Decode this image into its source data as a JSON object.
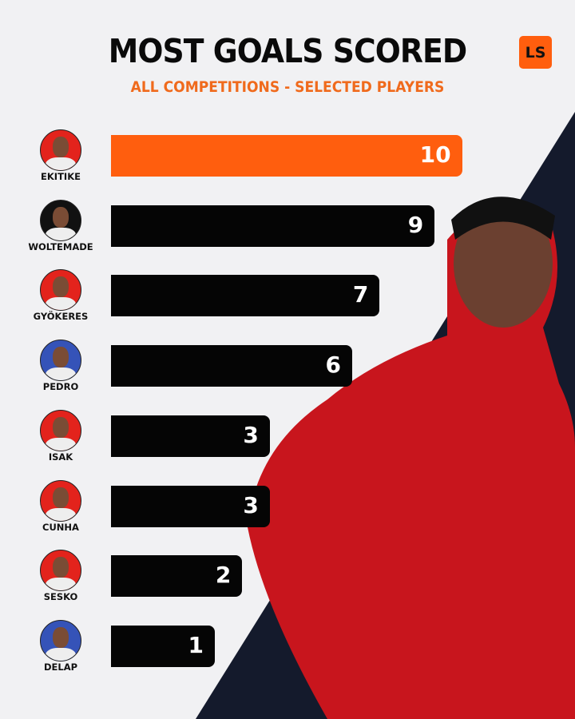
{
  "header": {
    "title": "MOST GOALS SCORED",
    "subtitle": "ALL COMPETITIONS  -  SELECTED PLAYERS",
    "logo_text": "LS"
  },
  "colors": {
    "accent": "#ff5e0e",
    "bar": "#050505",
    "subtitle": "#f06a1c"
  },
  "chart_data": {
    "type": "bar",
    "orientation": "horizontal",
    "title": "MOST GOALS SCORED",
    "subtitle": "ALL COMPETITIONS  -  SELECTED PLAYERS",
    "categories": [
      "EKITIKE",
      "WOLTEMADE",
      "GYÖKERES",
      "PEDRO",
      "ISAK",
      "CUNHA",
      "SESKO",
      "DELAP"
    ],
    "values": [
      10,
      9,
      7,
      6,
      3,
      3,
      2,
      1
    ],
    "avatar_colors": [
      "#e3231c",
      "#111111",
      "#e3231c",
      "#3553b8",
      "#e3231c",
      "#e3231c",
      "#e3231c",
      "#3553b8"
    ],
    "highlight_index": 0
  }
}
